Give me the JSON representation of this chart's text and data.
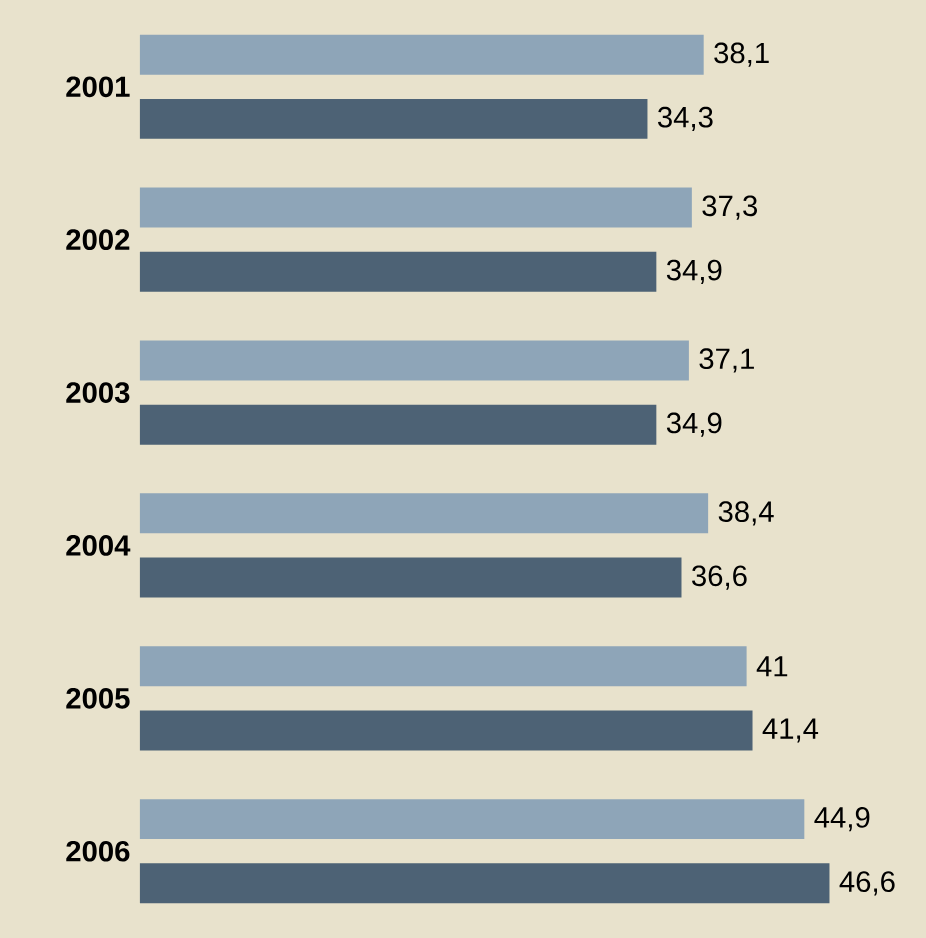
{
  "chart_data": {
    "type": "bar",
    "orientation": "horizontal",
    "categories": [
      "2001",
      "2002",
      "2003",
      "2004",
      "2005",
      "2006"
    ],
    "series": [
      {
        "color": "#8ea5b8",
        "values": [
          38.1,
          37.3,
          37.1,
          38.4,
          41,
          44.9
        ],
        "value_labels": [
          "38,1",
          "37,3",
          "37,1",
          "38,4",
          "41",
          "44,9"
        ]
      },
      {
        "color": "#4d6275",
        "values": [
          34.3,
          34.9,
          34.9,
          36.6,
          41.4,
          46.6
        ],
        "value_labels": [
          "34,3",
          "34,9",
          "34,9",
          "36,6",
          "41,4",
          "46,6"
        ]
      }
    ]
  }
}
